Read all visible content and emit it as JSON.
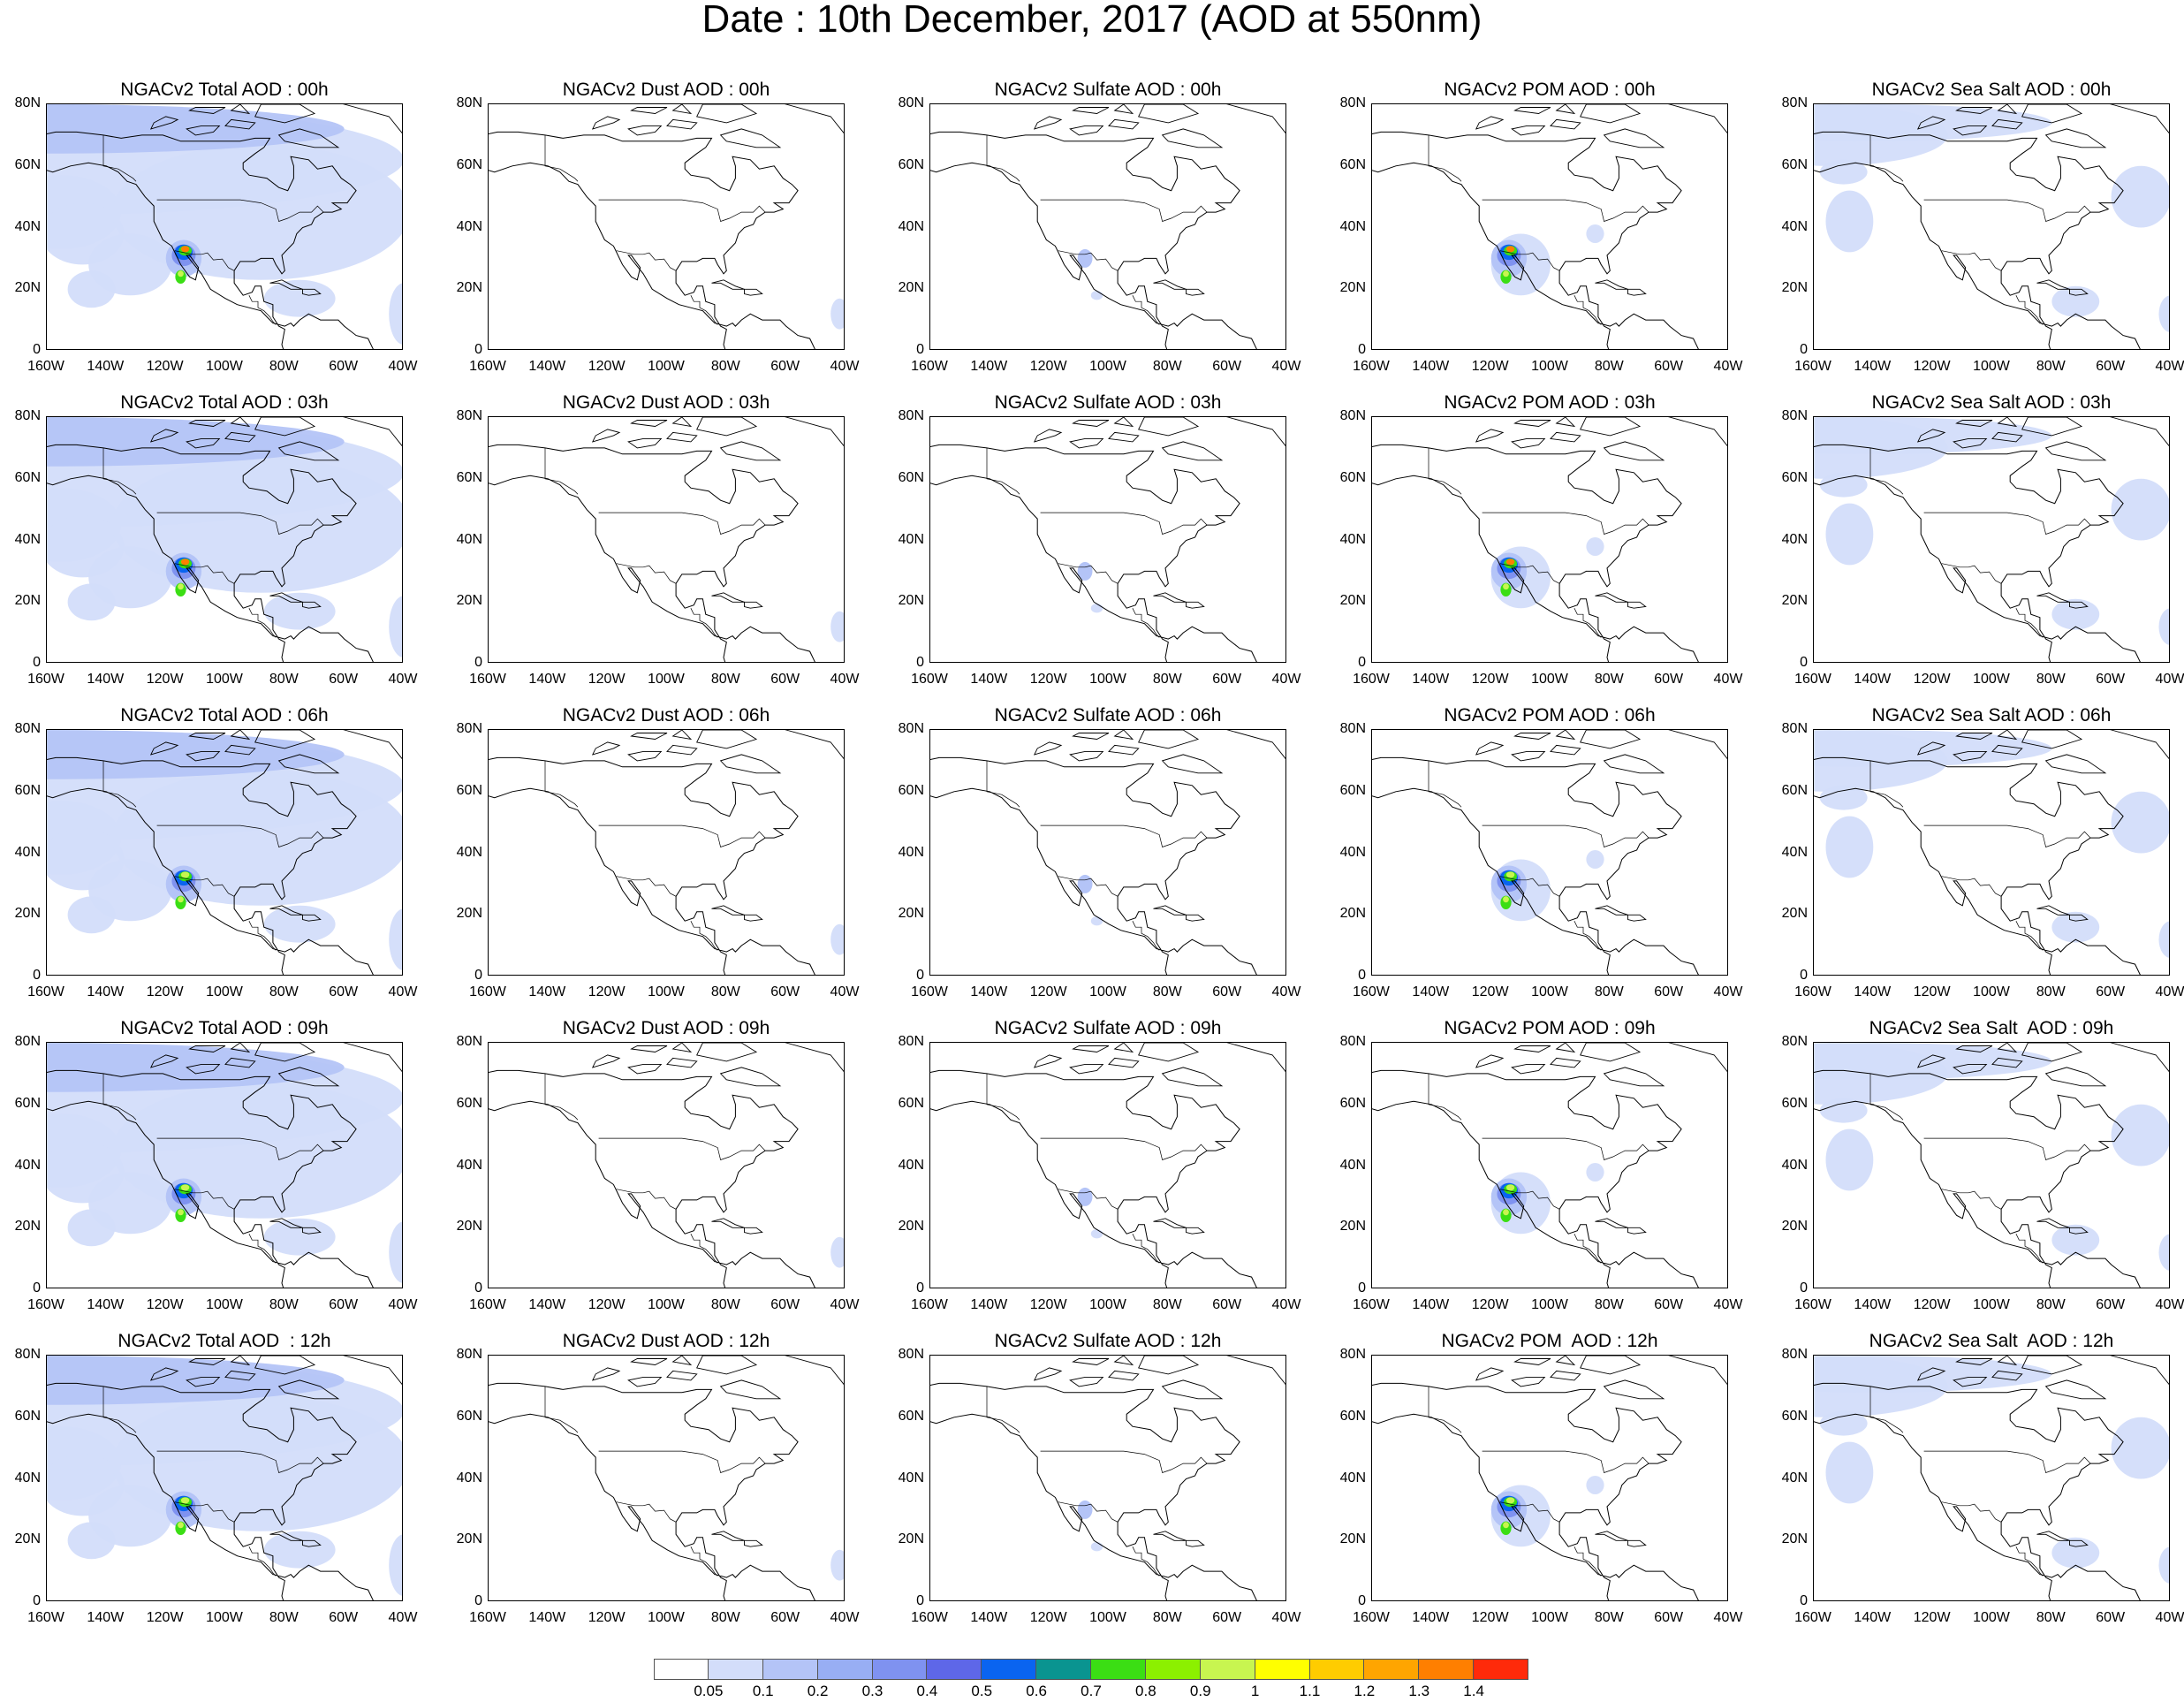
{
  "title": "Date : 10th December, 2017 (AOD at 550nm)",
  "y_axis_labels": [
    "80N",
    "60N",
    "40N",
    "20N",
    "0"
  ],
  "x_axis_labels": [
    "160W",
    "140W",
    "120W",
    "100W",
    "80W",
    "60W",
    "40W"
  ],
  "map_extent": {
    "lon_min": -160,
    "lon_max": -40,
    "lat_min": 0,
    "lat_max": 80
  },
  "species": [
    "total",
    "dust",
    "sulfate",
    "pom",
    "seasalt"
  ],
  "hours": [
    "00h",
    "03h",
    "06h",
    "09h",
    "12h"
  ],
  "panel_titles": [
    [
      "NGACv2 Total AOD : 00h",
      "NGACv2 Dust AOD : 00h",
      "NGACv2 Sulfate AOD : 00h",
      "NGACv2 POM AOD : 00h",
      "NGACv2 Sea Salt AOD : 00h"
    ],
    [
      "NGACv2 Total AOD : 03h",
      "NGACv2 Dust AOD : 03h",
      "NGACv2 Sulfate AOD : 03h",
      "NGACv2 POM AOD : 03h",
      "NGACv2 Sea Salt AOD : 03h"
    ],
    [
      "NGACv2 Total AOD : 06h",
      "NGACv2 Dust AOD : 06h",
      "NGACv2 Sulfate AOD : 06h",
      "NGACv2 POM AOD : 06h",
      "NGACv2 Sea Salt AOD : 06h"
    ],
    [
      "NGACv2 Total AOD : 09h",
      "NGACv2 Dust AOD : 09h",
      "NGACv2 Sulfate AOD : 09h",
      "NGACv2 POM AOD : 09h",
      "NGACv2 Sea Salt  AOD : 09h"
    ],
    [
      "NGACv2 Total AOD  : 12h",
      "NGACv2 Dust AOD : 12h",
      "NGACv2 Sulfate AOD : 12h",
      "NGACv2 POM  AOD : 12h",
      "NGACv2 Sea Salt  AOD : 12h"
    ]
  ],
  "colorbar": {
    "levels": [
      "0.05",
      "0.1",
      "0.2",
      "0.3",
      "0.4",
      "0.5",
      "0.6",
      "0.7",
      "0.8",
      "0.9",
      "1",
      "1.1",
      "1.2",
      "1.3",
      "1.4"
    ],
    "colors": [
      "#ffffff",
      "#d3ddfa",
      "#b4c4f7",
      "#98aef4",
      "#7f92f0",
      "#5e67e8",
      "#0a64f0",
      "#0a9490",
      "#3bde14",
      "#8cf000",
      "#c8f550",
      "#ffff00",
      "#ffcc00",
      "#ffa500",
      "#ff7f00",
      "#ff2a0a"
    ]
  },
  "coastline_color": "#000000",
  "border_color": "#000000"
}
